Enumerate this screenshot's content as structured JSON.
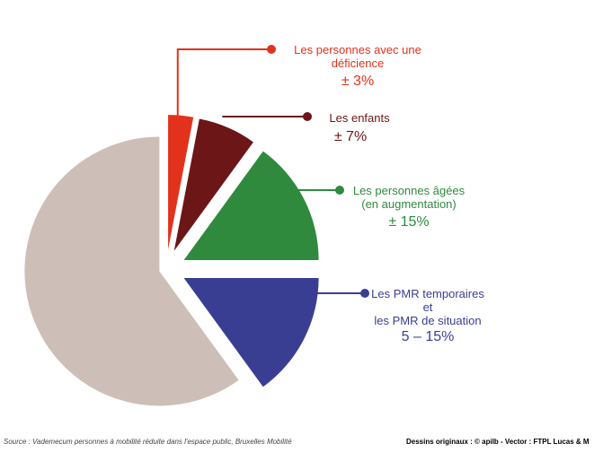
{
  "chart_data": {
    "type": "pie",
    "categories": [
      "Les personnes avec une\ndéficience",
      "Les enfants",
      "Les personnes âgées\n(en augmentation)",
      "Les PMR temporaires\net\nles PMR de situation",
      null
    ],
    "values": [
      3,
      7,
      15,
      15,
      60
    ],
    "value_labels": [
      "± 3%",
      "± 7%",
      "± 15%",
      "5 – 15%",
      null
    ],
    "colors": [
      "#e2321c",
      "#6c1618",
      "#2f8a3d",
      "#3a3e93",
      "#cdbfb7"
    ]
  },
  "footer": {
    "source": "Source : Vademecum personnes à mobilité réduite dans l'espace public, Bruxelles Mobilité",
    "credits": "Dessins originaux : © apilb - Vector : FTPL Lucas & M"
  }
}
